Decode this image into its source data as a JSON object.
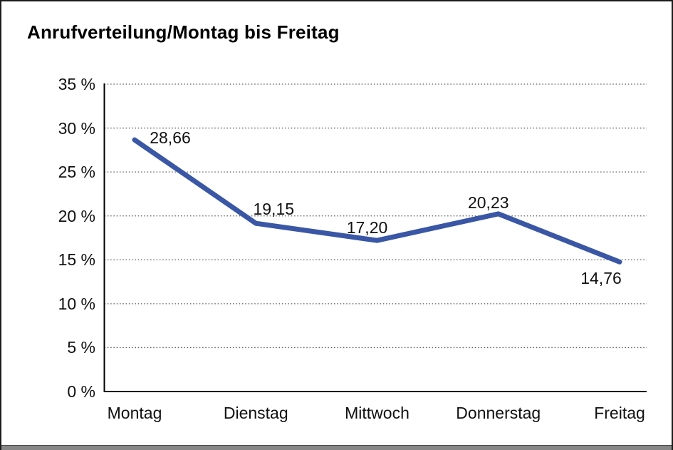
{
  "window": {
    "background": "#ffffff",
    "border_color": "#1c1c1c",
    "bottom_edge_color": "#878787"
  },
  "chart": {
    "title": "Anrufverteilung/Montag bis Freitag"
  },
  "chart_data": {
    "type": "line",
    "title": "Anrufverteilung/Montag bis Freitag",
    "categories": [
      "Montag",
      "Dienstag",
      "Mittwoch",
      "Donnerstag",
      "Freitag"
    ],
    "values": [
      28.66,
      19.15,
      17.2,
      20.23,
      14.76
    ],
    "value_labels": [
      "28,66",
      "19,15",
      "17,20",
      "20,23",
      "14,76"
    ],
    "xlabel": "",
    "ylabel": "",
    "ylim": [
      0,
      35
    ],
    "y_tick_step": 5,
    "y_ticks": [
      {
        "value": 0,
        "label": "0 %"
      },
      {
        "value": 5,
        "label": "5 %"
      },
      {
        "value": 10,
        "label": "10 %"
      },
      {
        "value": 15,
        "label": "15 %"
      },
      {
        "value": 20,
        "label": "20 %"
      },
      {
        "value": 25,
        "label": "25 %"
      },
      {
        "value": 30,
        "label": "30 %"
      },
      {
        "value": 35,
        "label": "35 %"
      }
    ],
    "grid": "horizontal-dotted",
    "legend": "none",
    "line_color": "#3a57a5",
    "axis_color": "#000000",
    "gridline_color": "#555555",
    "label_color": "#111111"
  }
}
